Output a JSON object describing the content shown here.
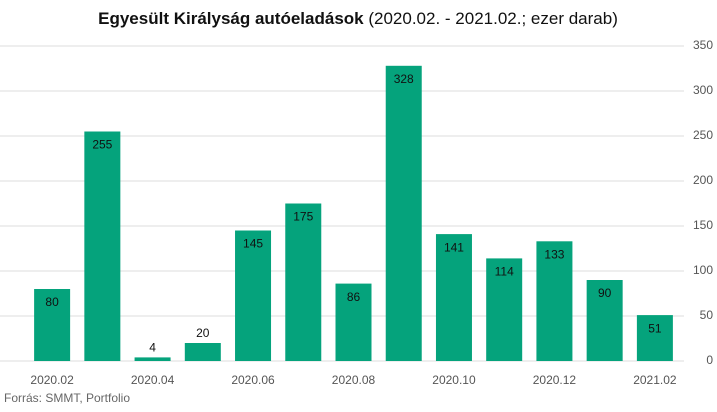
{
  "chart_data": {
    "type": "bar",
    "title": "Egyesült Királyság autóeladások",
    "subtitle": "(2020.02. - 2021.02.; ezer darab)",
    "source": "Forrás: SMMT, Portfolio",
    "categories": [
      "2020.02",
      null,
      "2020.04",
      null,
      "2020.06",
      null,
      "2020.08",
      null,
      "2020.10",
      null,
      "2020.12",
      null,
      "2021.02"
    ],
    "values": [
      80,
      255,
      4,
      20,
      145,
      175,
      86,
      328,
      141,
      114,
      133,
      90,
      51
    ],
    "color": "#05a37c",
    "ylim": [
      0,
      350
    ],
    "yticks": [
      0,
      50,
      100,
      150,
      200,
      250,
      300,
      350
    ],
    "grid": true
  }
}
